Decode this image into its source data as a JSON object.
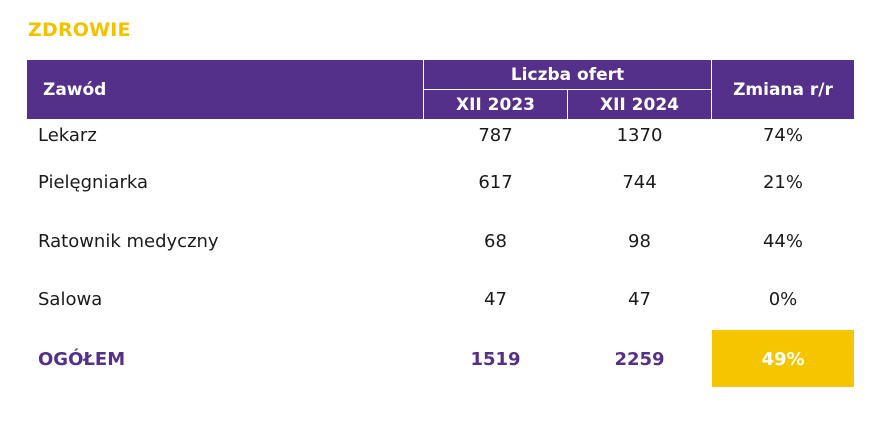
{
  "section_title": "ZDROWIE",
  "header": {
    "profession": "Zawód",
    "offers_group": "Liczba ofert",
    "year_a": "XII 2023",
    "year_b": "XII 2024",
    "change": "Zmiana r/r"
  },
  "rows": [
    {
      "name": "Lekarz",
      "y2023": "787",
      "y2024": "1370",
      "change": "74%"
    },
    {
      "name": "Pielęgniarka",
      "y2023": "617",
      "y2024": "744",
      "change": "21%"
    },
    {
      "name": "Ratownik medyczny",
      "y2023": "68",
      "y2024": "98",
      "change": "44%"
    },
    {
      "name": "Salowa",
      "y2023": "47",
      "y2024": "47",
      "change": "0%"
    }
  ],
  "total": {
    "name": "OGÓŁEM",
    "y2023": "1519",
    "y2024": "2259",
    "change": "49%"
  },
  "colors": {
    "header_bg": "#54308a",
    "title": "#f2c200",
    "total_text": "#54308a",
    "highlight_bg": "#f5c500"
  }
}
